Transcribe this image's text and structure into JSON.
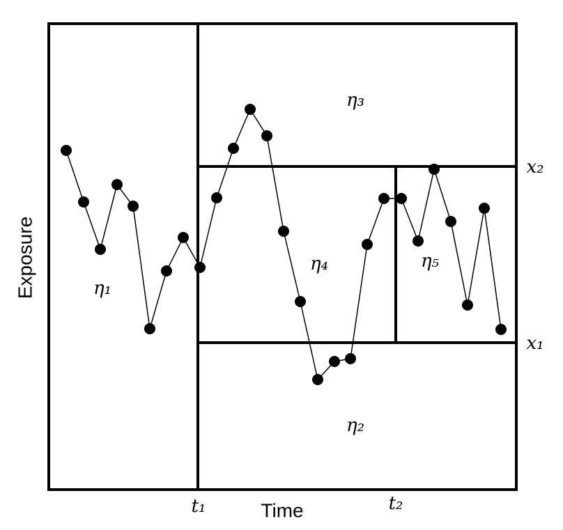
{
  "regions": [
    {
      "label": "η₁"
    },
    {
      "label": "η₂"
    },
    {
      "label": "η₃"
    },
    {
      "label": "η₄"
    },
    {
      "label": "η₅"
    }
  ],
  "x_axis": {
    "title": "Time",
    "marks": [
      "t₁",
      "t₂"
    ]
  },
  "y_axis": {
    "title": "Exposure",
    "marks": [
      "x₁",
      "x₂"
    ]
  }
}
